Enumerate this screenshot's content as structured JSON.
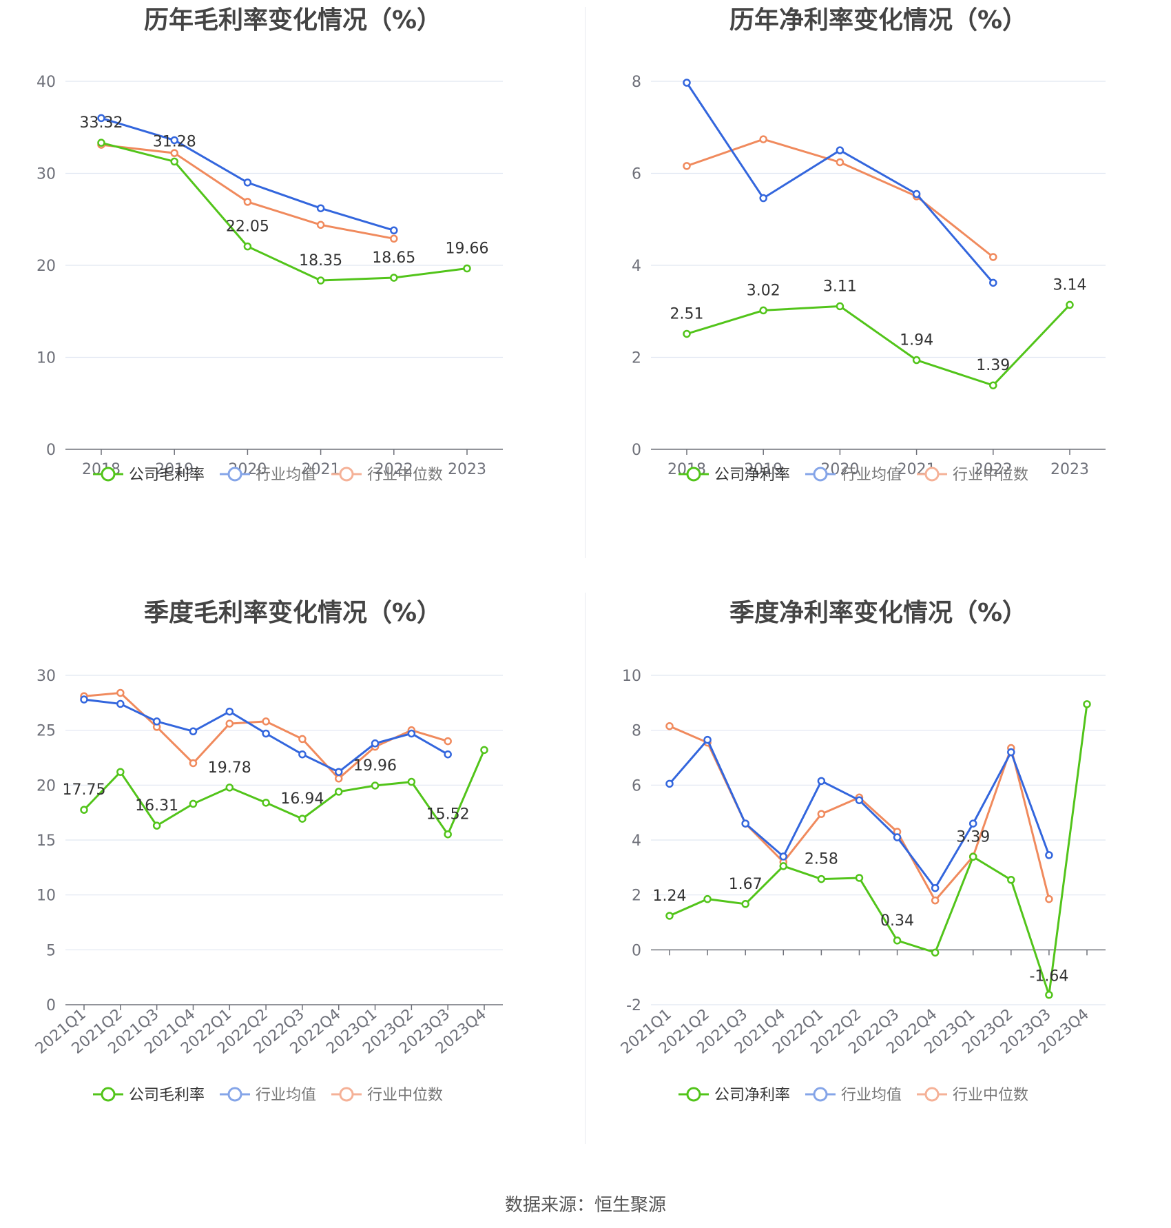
{
  "colors": {
    "company": "#52c41a",
    "avg": "#3366dd",
    "median": "#f08a5d",
    "grid": "#e0e6f1",
    "axis": "#6e7079",
    "label": "#333333"
  },
  "source": "数据来源：恒生聚源",
  "chart_data": [
    {
      "type": "line",
      "title": "历年毛利率变化情况（%）",
      "categories": [
        "2018",
        "2019",
        "2020",
        "2021",
        "2022",
        "2023"
      ],
      "ylim": [
        0,
        40
      ],
      "yticks": [
        0,
        10,
        20,
        30,
        40
      ],
      "grid": true,
      "legend": "bottom",
      "series": [
        {
          "name": "公司毛利率",
          "values": [
            33.32,
            31.28,
            22.05,
            18.35,
            18.65,
            19.66
          ],
          "labels": [
            "33.32",
            "31.28",
            "22.05",
            "18.35",
            "18.65",
            "19.66"
          ]
        },
        {
          "name": "行业均值",
          "values": [
            36.0,
            33.6,
            29.0,
            26.2,
            23.8,
            null
          ]
        },
        {
          "name": "行业中位数",
          "values": [
            33.1,
            32.2,
            26.9,
            24.4,
            22.9,
            null
          ]
        }
      ]
    },
    {
      "type": "line",
      "title": "历年净利率变化情况（%）",
      "categories": [
        "2018",
        "2019",
        "2020",
        "2021",
        "2022",
        "2023"
      ],
      "ylim": [
        0,
        8
      ],
      "yticks": [
        0,
        2,
        4,
        6,
        8
      ],
      "grid": true,
      "legend": "bottom",
      "series": [
        {
          "name": "公司净利率",
          "values": [
            2.51,
            3.02,
            3.11,
            1.94,
            1.39,
            3.14
          ],
          "labels": [
            "2.51",
            "3.02",
            "3.11",
            "1.94",
            "1.39",
            "3.14"
          ]
        },
        {
          "name": "行业均值",
          "values": [
            7.97,
            5.46,
            6.5,
            5.55,
            3.62,
            null
          ]
        },
        {
          "name": "行业中位数",
          "values": [
            6.16,
            6.74,
            6.24,
            5.5,
            4.18,
            null
          ]
        }
      ]
    },
    {
      "type": "line",
      "title": "季度毛利率变化情况（%）",
      "categories": [
        "2021Q1",
        "2021Q2",
        "2021Q3",
        "2021Q4",
        "2022Q1",
        "2022Q2",
        "2022Q3",
        "2022Q4",
        "2023Q1",
        "2023Q2",
        "2023Q3",
        "2023Q4"
      ],
      "ylim": [
        0,
        30
      ],
      "yticks": [
        0,
        5,
        10,
        15,
        20,
        25,
        30
      ],
      "grid": true,
      "legend": "bottom",
      "rotated_x_labels": true,
      "series": [
        {
          "name": "公司毛利率",
          "values": [
            17.75,
            21.2,
            16.31,
            18.3,
            19.78,
            18.4,
            16.94,
            19.4,
            19.96,
            20.3,
            15.52,
            23.2
          ],
          "labels": [
            "17.75",
            "",
            "16.31",
            "",
            "19.78",
            "",
            "16.94",
            "",
            "19.96",
            "",
            "15.52",
            ""
          ]
        },
        {
          "name": "行业均值",
          "values": [
            27.8,
            27.4,
            25.8,
            24.9,
            26.7,
            24.7,
            22.8,
            21.2,
            23.8,
            24.7,
            22.8,
            null
          ]
        },
        {
          "name": "行业中位数",
          "values": [
            28.1,
            28.4,
            25.3,
            22.0,
            25.6,
            25.8,
            24.2,
            20.6,
            23.5,
            25.0,
            24.0,
            null
          ]
        }
      ]
    },
    {
      "type": "line",
      "title": "季度净利率变化情况（%）",
      "categories": [
        "2021Q1",
        "2021Q2",
        "2021Q3",
        "2021Q4",
        "2022Q1",
        "2022Q2",
        "2022Q3",
        "2022Q4",
        "2023Q1",
        "2023Q2",
        "2023Q3",
        "2023Q4"
      ],
      "ylim": [
        -2,
        10
      ],
      "yticks": [
        -2,
        0,
        2,
        4,
        6,
        8,
        10
      ],
      "grid": true,
      "legend": "bottom",
      "rotated_x_labels": true,
      "category_ticks": true,
      "series": [
        {
          "name": "公司净利率",
          "values": [
            1.24,
            1.85,
            1.67,
            3.05,
            2.58,
            2.62,
            0.34,
            -0.1,
            3.39,
            2.55,
            -1.64,
            8.95
          ],
          "labels": [
            "1.24",
            "",
            "1.67",
            "",
            "2.58",
            "",
            "0.34",
            "",
            "3.39",
            "",
            "-1.64",
            ""
          ]
        },
        {
          "name": "行业均值",
          "values": [
            6.05,
            7.65,
            4.6,
            3.4,
            6.15,
            5.45,
            4.1,
            2.25,
            4.6,
            7.2,
            3.45,
            null
          ]
        },
        {
          "name": "行业中位数",
          "values": [
            8.15,
            7.55,
            4.6,
            3.2,
            4.95,
            5.55,
            4.3,
            1.8,
            3.4,
            7.35,
            1.85,
            null
          ]
        }
      ]
    }
  ]
}
